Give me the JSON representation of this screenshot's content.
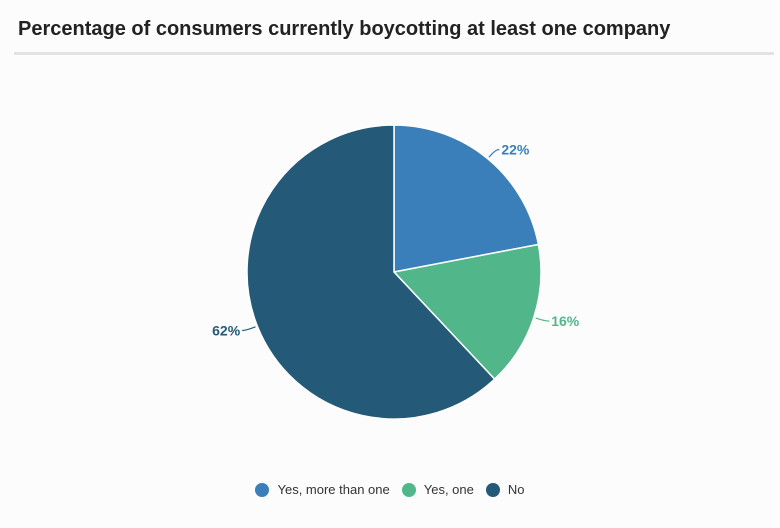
{
  "chart_data": {
    "type": "pie",
    "title": "Percentage of consumers currently boycotting at least one company",
    "slices": [
      {
        "name": "Yes, more than one",
        "value": 22,
        "label": "22%",
        "color": "#3a7fba"
      },
      {
        "name": "Yes, one",
        "value": 16,
        "label": "16%",
        "color": "#52b68b"
      },
      {
        "name": "No",
        "value": 62,
        "label": "62%",
        "color": "#245a78"
      }
    ],
    "legend": {
      "placement": "bottom-center"
    }
  }
}
